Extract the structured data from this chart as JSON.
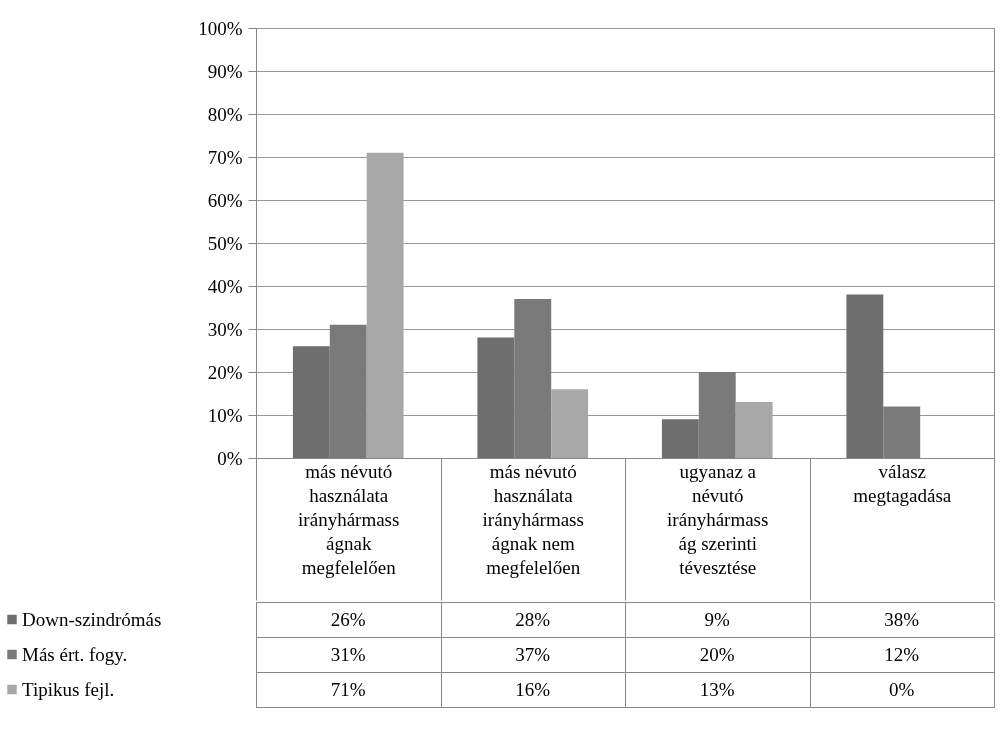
{
  "chart_data": {
    "type": "bar",
    "categories": [
      "más névutó használata irányhármasságnak megfelelően",
      "más névutó használata irányhármasságnak nem megfelelően",
      "ugyanaz a névutó irányhármasság szerinti tévesztése",
      "válasz megtagadása"
    ],
    "series": [
      {
        "name": "Down-szindrómás",
        "color": "#6e6e6e",
        "values": [
          26,
          28,
          9,
          38
        ],
        "value_labels": [
          "26%",
          "28%",
          "9%",
          "38%"
        ]
      },
      {
        "name": "Más ért. fogy.",
        "color": "#7a7a7a",
        "values": [
          31,
          37,
          20,
          12
        ],
        "value_labels": [
          "31%",
          "37%",
          "20%",
          "12%"
        ]
      },
      {
        "name": "Tipikus fejl.",
        "color": "#a8a8a8",
        "values": [
          71,
          16,
          13,
          0
        ],
        "value_labels": [
          "71%",
          "16%",
          "13%",
          "0%"
        ]
      }
    ],
    "ylim": [
      0,
      100
    ],
    "yticks": [
      {
        "value": 0,
        "label": "0%"
      },
      {
        "value": 10,
        "label": "10%"
      },
      {
        "value": 20,
        "label": "20%"
      },
      {
        "value": 30,
        "label": "30%"
      },
      {
        "value": 40,
        "label": "40%"
      },
      {
        "value": 50,
        "label": "50%"
      },
      {
        "value": 60,
        "label": "60%"
      },
      {
        "value": 70,
        "label": "70%"
      },
      {
        "value": 80,
        "label": "80%"
      },
      {
        "value": 90,
        "label": "90%"
      },
      {
        "value": 100,
        "label": "100%"
      }
    ],
    "grid": "y",
    "legend": "left"
  }
}
